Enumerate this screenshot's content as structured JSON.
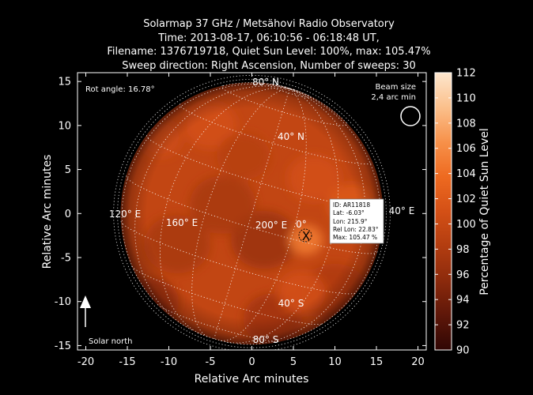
{
  "title": {
    "line1": "Solarmap 37 GHz / Metsähovi Radio Observatory",
    "line2": "Time: 2013-08-17, 06:10:56 - 06:18:48 UT,",
    "line3": "Filename: 1376719718, Quiet Sun Level: 100%, max: 105.47%",
    "line4": "Sweep direction: Right Ascension, Number of sweeps: 30"
  },
  "annotations": {
    "rot_angle": "Rot angle: 16.78°",
    "beam_size_line1": "Beam size",
    "beam_size_line2": "2,4 arc min",
    "solar_north": "Solar north"
  },
  "grid_labels": {
    "lat_80n": "80° N",
    "lat_40n": "40° N",
    "lat_40s": "40° S",
    "lat_80s": "80° S",
    "lon_120e": "120° E",
    "lon_160e": "160° E",
    "lon_200e": "200° E",
    "lon_0": "0°",
    "lon_40e": "40° E"
  },
  "active_region": {
    "marker": "X",
    "id": "ID: AR11818",
    "lat": "Lat: -6.03°",
    "lon": "Lon: 215.9°",
    "rel_lon": "Rel Lon: 22.83°",
    "max": "Max: 105.47 %"
  },
  "colors": {
    "background": "#000000",
    "colormap": [
      "#300604",
      "#5e1709",
      "#8c2a0c",
      "#b33d10",
      "#d45016",
      "#ee6a20",
      "#f7914a",
      "#fbc08c",
      "#fde6cd"
    ]
  },
  "chart_data": {
    "type": "heatmap",
    "xlabel": "Relative Arc minutes",
    "ylabel": "Relative Arc minutes",
    "colorbar_label": "Percentage of Quiet Sun Level",
    "xlim": [
      -21,
      21
    ],
    "ylim": [
      -15.5,
      16
    ],
    "xticks": [
      -20,
      -15,
      -10,
      -5,
      0,
      5,
      10,
      15,
      20
    ],
    "yticks": [
      -15,
      -10,
      -5,
      0,
      5,
      10,
      15
    ],
    "colorbar_range": [
      90,
      112
    ],
    "colorbar_ticks": [
      90,
      92,
      94,
      96,
      98,
      100,
      102,
      104,
      106,
      108,
      110,
      112
    ],
    "solar_radius_arcmin": 15.8,
    "background_level_percent": 99.5,
    "features": [
      {
        "x": 1.5,
        "y": -3.0,
        "sigma": 2.5,
        "value": 96.5
      },
      {
        "x": -3.5,
        "y": 1.0,
        "sigma": 2.5,
        "value": 97.5
      },
      {
        "x": -9.0,
        "y": -3.5,
        "sigma": 2.5,
        "value": 97.5
      },
      {
        "x": 6.5,
        "y": -3.0,
        "sigma": 1.3,
        "value": 105.0
      },
      {
        "x": 7.5,
        "y": 4.0,
        "sigma": 2.0,
        "value": 101.0
      },
      {
        "x": -5.0,
        "y": 10.0,
        "sigma": 2.0,
        "value": 101.0
      },
      {
        "x": -11.0,
        "y": 8.5,
        "sigma": 1.6,
        "value": 100.5
      },
      {
        "x": 10.0,
        "y": -9.0,
        "sigma": 2.5,
        "value": 98.0
      },
      {
        "x": -12.0,
        "y": -10.0,
        "sigma": 2.0,
        "value": 97.0
      },
      {
        "x": 2.5,
        "y": -12.0,
        "sigma": 2.2,
        "value": 97.0
      },
      {
        "x": 6.0,
        "y": -9.0,
        "sigma": 1.8,
        "value": 101.0
      },
      {
        "x": -1.0,
        "y": 6.5,
        "sigma": 2.0,
        "value": 98.5
      },
      {
        "x": 12.0,
        "y": 1.0,
        "sigma": 1.8,
        "value": 102.0
      }
    ]
  }
}
